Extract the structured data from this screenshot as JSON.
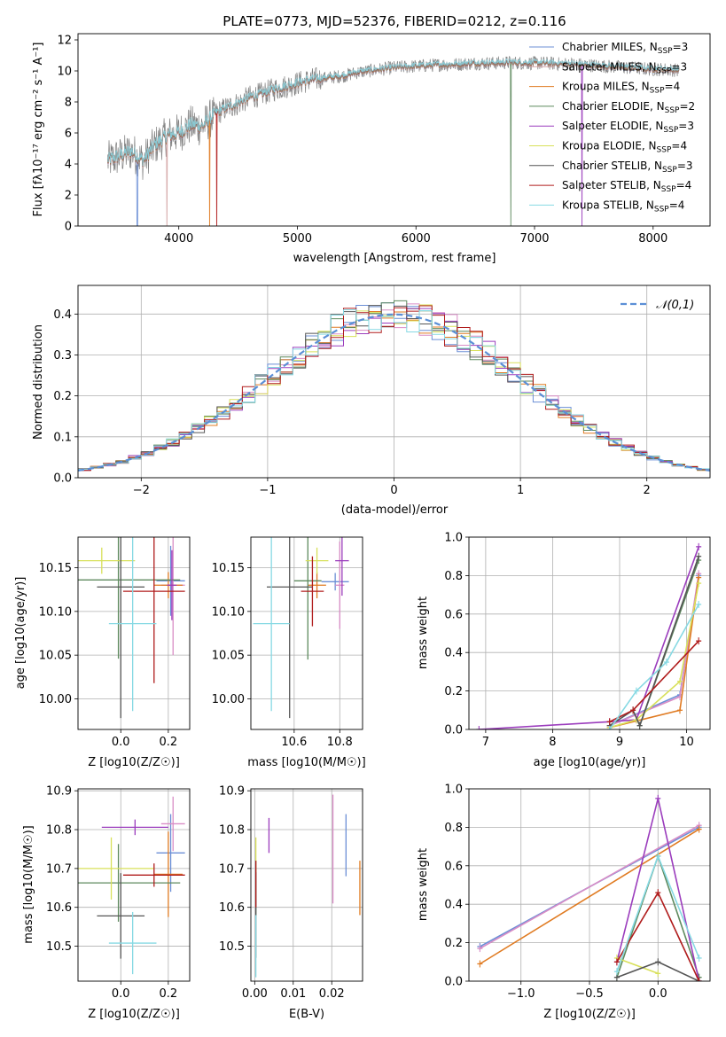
{
  "chart_data": [
    {
      "id": "spectrum",
      "type": "line",
      "title": "PLATE=0773, MJD=52376, FIBERID=0212, z=0.116",
      "xlabel": "wavelength [Angstrom, rest frame]",
      "ylabel": "Flux [fλ10⁻¹⁷ erg cm⁻² s⁻¹ A⁻¹]",
      "xlim": [
        3150,
        8480
      ],
      "ylim": [
        0,
        12.4
      ],
      "xticks": [
        4000,
        5000,
        6000,
        7000,
        8000
      ],
      "yticks": [
        0,
        2,
        4,
        6,
        8,
        10,
        12
      ],
      "grid": false,
      "legend_position": "upper right",
      "observed": {
        "color": "#808080",
        "x": [
          3400,
          3500,
          3600,
          3700,
          3800,
          3900,
          4000,
          4100,
          4200,
          4300,
          4400,
          4500,
          4600,
          4700,
          4800,
          4900,
          5000,
          5100,
          5200,
          5300,
          5400,
          5500,
          5600,
          5700,
          5800,
          5900,
          6000,
          6100,
          6200,
          6300,
          6400,
          6500,
          6600,
          6700,
          6800,
          6900,
          7000,
          7100,
          7200,
          7300,
          7400,
          7500,
          7600,
          7700,
          7800,
          7900,
          8000,
          8100,
          8200
        ],
        "y": [
          4.2,
          4.5,
          4.8,
          4.2,
          5.2,
          5.8,
          6.0,
          6.5,
          6.4,
          7.2,
          7.6,
          7.9,
          8.3,
          8.5,
          8.8,
          9.0,
          9.2,
          9.4,
          9.5,
          9.6,
          9.7,
          9.9,
          10.0,
          10.1,
          10.2,
          10.25,
          10.3,
          10.35,
          10.4,
          10.4,
          10.45,
          10.5,
          10.5,
          10.5,
          10.55,
          10.5,
          10.5,
          10.5,
          10.45,
          10.45,
          10.4,
          10.35,
          10.3,
          10.25,
          10.2,
          10.15,
          10.1,
          10.1,
          10.05
        ]
      },
      "series": [
        {
          "name": "Chabrier MILES, N_SSP=3",
          "color": "#6b8fd6"
        },
        {
          "name": "Salpeter MILES, N_SSP=3",
          "color": "#d4a5a5"
        },
        {
          "name": "Kroupa MILES, N_SSP=4",
          "color": "#e07b22"
        },
        {
          "name": "Chabrier ELODIE, N_SSP=2",
          "color": "#5e8a5e"
        },
        {
          "name": "Salpeter ELODIE, N_SSP=3",
          "color": "#9b3dbd"
        },
        {
          "name": "Kroupa ELODIE, N_SSP=4",
          "color": "#d8e05a"
        },
        {
          "name": "Chabrier STELIB, N_SSP=3",
          "color": "#555555"
        },
        {
          "name": "Salpeter STELIB, N_SSP=4",
          "color": "#b01c1c"
        },
        {
          "name": "Kroupa STELIB, N_SSP=4",
          "color": "#86d9e3"
        }
      ],
      "legend_labels": [
        {
          "prefix": "Chabrier MILES, N",
          "sub": "SSP",
          "suffix": "=3"
        },
        {
          "prefix": "Salpeter MILES, N",
          "sub": "SSP",
          "suffix": "=3"
        },
        {
          "prefix": "Kroupa MILES, N",
          "sub": "SSP",
          "suffix": "=4"
        },
        {
          "prefix": "Chabrier ELODIE, N",
          "sub": "SSP",
          "suffix": "=2"
        },
        {
          "prefix": "Salpeter ELODIE, N",
          "sub": "SSP",
          "suffix": "=3"
        },
        {
          "prefix": "Kroupa ELODIE, N",
          "sub": "SSP",
          "suffix": "=4"
        },
        {
          "prefix": "Chabrier STELIB, N",
          "sub": "SSP",
          "suffix": "=3"
        },
        {
          "prefix": "Salpeter STELIB, N",
          "sub": "SSP",
          "suffix": "=4"
        },
        {
          "prefix": "Kroupa STELIB, N",
          "sub": "SSP",
          "suffix": "=4"
        }
      ]
    },
    {
      "id": "residuals",
      "type": "line",
      "xlabel": "(data-model)/error",
      "ylabel": "Normed distribution",
      "xlim": [
        -2.5,
        2.5
      ],
      "ylim": [
        0,
        0.47
      ],
      "xticks": [
        -2,
        -1,
        0,
        1,
        2
      ],
      "yticks": [
        0.0,
        0.1,
        0.2,
        0.3,
        0.4
      ],
      "grid": true,
      "legend_position": "upper right",
      "reference": {
        "name": "𝒩(0,1)",
        "color": "#5b8fd6",
        "style": "dashed"
      },
      "bin_width": 0.1,
      "series_jitter_colors": [
        "#6b8fd6",
        "#d98cc6",
        "#e07b22",
        "#5e8a5e",
        "#9b3dbd",
        "#d8e05a",
        "#555555",
        "#b01c1c",
        "#86d9e3"
      ]
    },
    {
      "id": "age_vs_Z",
      "type": "scatter",
      "xlabel": "Z [log10(Z/Z☉)]",
      "ylabel": "age [log10(age/yr)]",
      "xlim": [
        -0.18,
        0.29
      ],
      "ylim": [
        9.965,
        10.185
      ],
      "xticks": [
        0.0,
        0.2
      ],
      "yticks": [
        10.0,
        10.05,
        10.1,
        10.15
      ],
      "grid": true,
      "points": [
        {
          "color": "#6b8fd6",
          "x": 0.21,
          "xerr": 0.06,
          "y": 10.135,
          "yerr": 0.04
        },
        {
          "color": "#d98cc6",
          "x": 0.22,
          "xerr": 0.05,
          "y": 10.13,
          "yerr": 0.08
        },
        {
          "color": "#e07b22",
          "x": 0.2,
          "xerr": 0.06,
          "y": 10.13,
          "yerr": 0.015
        },
        {
          "color": "#5e8a5e",
          "x": -0.01,
          "xerr": 0.26,
          "y": 10.136,
          "yerr": 0.09
        },
        {
          "color": "#9b3dbd",
          "x": 0.215,
          "xerr": 0.02,
          "y": 10.13,
          "yerr": 0.04
        },
        {
          "color": "#d8e05a",
          "x": -0.08,
          "xerr": 0.14,
          "y": 10.158,
          "yerr": 0.015
        },
        {
          "color": "#555555",
          "x": 0.0,
          "xerr": 0.1,
          "y": 10.128,
          "yerr": 0.15
        },
        {
          "color": "#b01c1c",
          "x": 0.14,
          "xerr": 0.13,
          "y": 10.123,
          "yerr": 0.105
        },
        {
          "color": "#86d9e3",
          "x": 0.05,
          "xerr": 0.1,
          "y": 10.086,
          "yerr": 0.1
        }
      ]
    },
    {
      "id": "age_vs_mass",
      "type": "scatter",
      "xlabel": "mass [log10(M/M☉)]",
      "xlim": [
        10.41,
        10.9
      ],
      "ylim": [
        9.965,
        10.185
      ],
      "xticks": [
        10.6,
        10.8
      ],
      "yticks": [
        10.0,
        10.05,
        10.1,
        10.15
      ],
      "grid": true,
      "points": [
        {
          "color": "#6b8fd6",
          "x": 10.78,
          "xerr": 0.06,
          "y": 10.134,
          "yerr": 0.01
        },
        {
          "color": "#d98cc6",
          "x": 10.8,
          "xerr": 0.02,
          "y": 10.13,
          "yerr": 0.05
        },
        {
          "color": "#e07b22",
          "x": 10.7,
          "xerr": 0.04,
          "y": 10.13,
          "yerr": 0.015
        },
        {
          "color": "#5e8a5e",
          "x": 10.66,
          "xerr": 0.06,
          "y": 10.135,
          "yerr": 0.09
        },
        {
          "color": "#9b3dbd",
          "x": 10.81,
          "xerr": 0.03,
          "y": 10.158,
          "yerr": 0.04
        },
        {
          "color": "#d8e05a",
          "x": 10.7,
          "xerr": 0.05,
          "y": 10.158,
          "yerr": 0.015
        },
        {
          "color": "#555555",
          "x": 10.58,
          "xerr": 0.1,
          "y": 10.128,
          "yerr": 0.15
        },
        {
          "color": "#b01c1c",
          "x": 10.68,
          "xerr": 0.05,
          "y": 10.123,
          "yerr": 0.04
        },
        {
          "color": "#86d9e3",
          "x": 10.5,
          "xerr": 0.08,
          "y": 10.086,
          "yerr": 0.1
        }
      ]
    },
    {
      "id": "massweight_vs_age",
      "type": "line",
      "xlabel": "age [log10(age/yr)]",
      "ylabel": "mass weight",
      "xlim": [
        6.75,
        10.35
      ],
      "ylim": [
        0,
        1.0
      ],
      "xticks": [
        7,
        8,
        9,
        10
      ],
      "yticks": [
        0.0,
        0.2,
        0.4,
        0.6,
        0.8,
        1.0
      ],
      "grid": true,
      "series": [
        {
          "color": "#6b8fd6",
          "x": [
            8.85,
            9.9,
            10.18
          ],
          "y": [
            0.02,
            0.18,
            0.8
          ]
        },
        {
          "color": "#d98cc6",
          "x": [
            8.85,
            9.9,
            10.18
          ],
          "y": [
            0.02,
            0.17,
            0.81
          ]
        },
        {
          "color": "#e07b22",
          "x": [
            8.85,
            9.9,
            10.18
          ],
          "y": [
            0.01,
            0.1,
            0.79
          ]
        },
        {
          "color": "#5e8a5e",
          "x": [
            9.3,
            10.18
          ],
          "y": [
            0.02,
            0.88
          ]
        },
        {
          "color": "#9b3dbd",
          "x": [
            6.9,
            8.85,
            9.25,
            10.18
          ],
          "y": [
            0.0,
            0.04,
            0.05,
            0.95
          ]
        },
        {
          "color": "#d8e05a",
          "x": [
            8.85,
            9.25,
            9.9,
            10.18
          ],
          "y": [
            0.01,
            0.05,
            0.25,
            0.76
          ]
        },
        {
          "color": "#555555",
          "x": [
            8.85,
            9.2,
            9.3,
            10.18
          ],
          "y": [
            0.02,
            0.1,
            0.02,
            0.9
          ]
        },
        {
          "color": "#b01c1c",
          "x": [
            8.85,
            9.2,
            10.18
          ],
          "y": [
            0.04,
            0.1,
            0.46
          ]
        },
        {
          "color": "#86d9e3",
          "x": [
            8.85,
            9.25,
            9.7,
            10.18
          ],
          "y": [
            0.0,
            0.2,
            0.35,
            0.65
          ]
        }
      ]
    },
    {
      "id": "mass_vs_Z",
      "type": "scatter",
      "xlabel": "Z [log10(Z/Z☉)]",
      "ylabel": "mass [log10(M/M☉)]",
      "xlim": [
        -0.18,
        0.29
      ],
      "ylim": [
        10.41,
        10.905
      ],
      "xticks": [
        0.0,
        0.2
      ],
      "yticks": [
        10.5,
        10.6,
        10.7,
        10.8,
        10.9
      ],
      "grid": true,
      "points": [
        {
          "color": "#6b8fd6",
          "x": 0.21,
          "xerr": 0.06,
          "y": 10.74,
          "yerr": 0.1
        },
        {
          "color": "#d98cc6",
          "x": 0.22,
          "xerr": 0.05,
          "y": 10.815,
          "yerr": 0.07
        },
        {
          "color": "#e07b22",
          "x": 0.2,
          "xerr": 0.06,
          "y": 10.685,
          "yerr": 0.11
        },
        {
          "color": "#5e8a5e",
          "x": -0.01,
          "xerr": 0.26,
          "y": 10.663,
          "yerr": 0.1
        },
        {
          "color": "#9b3dbd",
          "x": 0.06,
          "xerr": 0.14,
          "y": 10.806,
          "yerr": 0.02
        },
        {
          "color": "#d8e05a",
          "x": -0.04,
          "xerr": 0.18,
          "y": 10.7,
          "yerr": 0.08
        },
        {
          "color": "#555555",
          "x": 0.0,
          "xerr": 0.1,
          "y": 10.578,
          "yerr": 0.11
        },
        {
          "color": "#b01c1c",
          "x": 0.14,
          "xerr": 0.13,
          "y": 10.683,
          "yerr": 0.03
        },
        {
          "color": "#86d9e3",
          "x": 0.05,
          "xerr": 0.1,
          "y": 10.508,
          "yerr": 0.08
        }
      ]
    },
    {
      "id": "mass_vs_ebv",
      "type": "scatter",
      "xlabel": "E(B-V)",
      "xlim": [
        -0.001,
        0.028
      ],
      "ylim": [
        10.41,
        10.905
      ],
      "xticks": [
        0.0,
        0.01,
        0.02
      ],
      "yticks": [
        10.5,
        10.6,
        10.7,
        10.8,
        10.9
      ],
      "grid": true,
      "points": [
        {
          "color": "#6b8fd6",
          "x": 0.0237,
          "xerr": 0.0,
          "y": 10.76,
          "yerr": 0.08
        },
        {
          "color": "#d98cc6",
          "x": 0.0203,
          "xerr": 0.0,
          "y": 10.75,
          "yerr": 0.14
        },
        {
          "color": "#e07b22",
          "x": 0.0273,
          "xerr": 0.0,
          "y": 10.65,
          "yerr": 0.07
        },
        {
          "color": "#5e8a5e",
          "x": 0.0003,
          "xerr": 0.0,
          "y": 10.65,
          "yerr": 0.07
        },
        {
          "color": "#9b3dbd",
          "x": 0.0037,
          "xerr": 0.0,
          "y": 10.785,
          "yerr": 0.045
        },
        {
          "color": "#d8e05a",
          "x": 0.0003,
          "xerr": 0.0,
          "y": 10.7,
          "yerr": 0.08
        },
        {
          "color": "#555555",
          "x": 0.0003,
          "xerr": 0.0,
          "y": 10.58,
          "yerr": 0.11
        },
        {
          "color": "#b01c1c",
          "x": 0.0003,
          "xerr": 0.0,
          "y": 10.66,
          "yerr": 0.06
        },
        {
          "color": "#86d9e3",
          "x": 0.0003,
          "xerr": 0.0,
          "y": 10.5,
          "yerr": 0.08
        }
      ]
    },
    {
      "id": "massweight_vs_Z",
      "type": "line",
      "xlabel": "Z [log10(Z/Z☉)]",
      "ylabel": "mass weight",
      "xlim": [
        -1.38,
        0.38
      ],
      "ylim": [
        0,
        1.0
      ],
      "xticks": [
        -1.0,
        -0.5,
        0.0
      ],
      "yticks": [
        0.0,
        0.2,
        0.4,
        0.6,
        0.8,
        1.0
      ],
      "grid": true,
      "series": [
        {
          "color": "#6b8fd6",
          "x": [
            -1.3,
            0.3
          ],
          "y": [
            0.18,
            0.8
          ]
        },
        {
          "color": "#d98cc6",
          "x": [
            -1.3,
            0.3
          ],
          "y": [
            0.17,
            0.81
          ]
        },
        {
          "color": "#e07b22",
          "x": [
            -1.3,
            0.3
          ],
          "y": [
            0.09,
            0.79
          ]
        },
        {
          "color": "#5e8a5e",
          "x": [
            -0.3,
            0.0,
            0.3
          ],
          "y": [
            0.02,
            0.65,
            0.02
          ]
        },
        {
          "color": "#9b3dbd",
          "x": [
            -0.3,
            0.0,
            0.3
          ],
          "y": [
            0.1,
            0.95,
            0.0
          ]
        },
        {
          "color": "#d8e05a",
          "x": [
            -0.3,
            0.0
          ],
          "y": [
            0.12,
            0.04
          ]
        },
        {
          "color": "#555555",
          "x": [
            -0.3,
            0.0,
            0.3
          ],
          "y": [
            0.02,
            0.1,
            0.0
          ]
        },
        {
          "color": "#b01c1c",
          "x": [
            -0.3,
            0.0,
            0.3
          ],
          "y": [
            0.1,
            0.46,
            0.0
          ]
        },
        {
          "color": "#86d9e3",
          "x": [
            -0.3,
            0.0,
            0.3
          ],
          "y": [
            0.05,
            0.65,
            0.12
          ]
        }
      ]
    }
  ]
}
